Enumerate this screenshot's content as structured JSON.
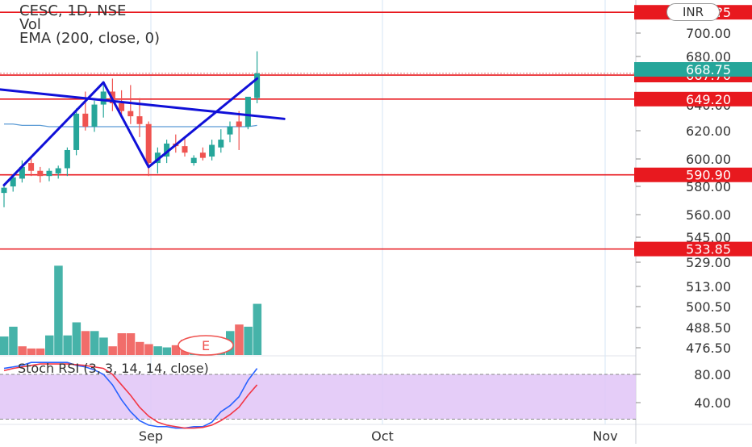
{
  "legend": {
    "symbol": "CESC, 1D, NSE",
    "volume": "Vol",
    "ema": "EMA (200, close, 0)",
    "stoch": "Stoch RSI (3, 3, 14, 14, close)"
  },
  "currency": "INR",
  "event_marker": "E",
  "colors": {
    "up": "#26a69a",
    "down": "#ef5350",
    "pattern_line": "#1010d8",
    "ema_line": "#5b9bd5",
    "level_line": "#e8191f",
    "stoch_k": "#2962ff",
    "stoch_d": "#f23645",
    "stoch_band": "#e1c4f7"
  },
  "chart_data": {
    "type": "candlestick",
    "price_axis_ticks": [
      "700.00",
      "680.00",
      "668.75",
      "640.00",
      "620.00",
      "600.00",
      "580.00",
      "560.00",
      "545.00",
      "529.00",
      "513.00",
      "500.50",
      "488.50",
      "476.50"
    ],
    "stoch_axis_ticks": [
      "80.00",
      "40.00"
    ],
    "x_ticks": [
      "Sep",
      "Oct",
      "Nov"
    ],
    "last_price": "668.75",
    "price_levels": [
      {
        "label": "71?.?5",
        "value": 716
      },
      {
        "label": "667.70",
        "value": 667.7
      },
      {
        "label": "649.20",
        "value": 649.2
      },
      {
        "label": "590.90",
        "value": 590.9
      },
      {
        "label": "533.85",
        "value": 533.85
      }
    ],
    "candles": [
      {
        "o": 577,
        "h": 584,
        "l": 566,
        "c": 581
      },
      {
        "o": 582,
        "h": 590,
        "l": 578,
        "c": 589
      },
      {
        "o": 588,
        "h": 602,
        "l": 585,
        "c": 597
      },
      {
        "o": 600,
        "h": 605,
        "l": 590,
        "c": 594
      },
      {
        "o": 594,
        "h": 597,
        "l": 585,
        "c": 590
      },
      {
        "o": 590,
        "h": 596,
        "l": 586,
        "c": 594
      },
      {
        "o": 592,
        "h": 598,
        "l": 588,
        "c": 596
      },
      {
        "o": 596,
        "h": 612,
        "l": 590,
        "c": 610
      },
      {
        "o": 610,
        "h": 642,
        "l": 606,
        "c": 638
      },
      {
        "o": 638,
        "h": 655,
        "l": 625,
        "c": 628
      },
      {
        "o": 628,
        "h": 648,
        "l": 624,
        "c": 645
      },
      {
        "o": 645,
        "h": 660,
        "l": 635,
        "c": 655
      },
      {
        "o": 655,
        "h": 665,
        "l": 640,
        "c": 646
      },
      {
        "o": 646,
        "h": 656,
        "l": 636,
        "c": 640
      },
      {
        "o": 640,
        "h": 660,
        "l": 630,
        "c": 636
      },
      {
        "o": 636,
        "h": 650,
        "l": 620,
        "c": 630
      },
      {
        "o": 630,
        "h": 632,
        "l": 590,
        "c": 600
      },
      {
        "o": 600,
        "h": 612,
        "l": 592,
        "c": 608
      },
      {
        "o": 605,
        "h": 618,
        "l": 600,
        "c": 615
      },
      {
        "o": 615,
        "h": 622,
        "l": 608,
        "c": 613
      },
      {
        "o": 613,
        "h": 620,
        "l": 605,
        "c": 608
      },
      {
        "o": 600,
        "h": 606,
        "l": 598,
        "c": 604
      },
      {
        "o": 608,
        "h": 612,
        "l": 602,
        "c": 604
      },
      {
        "o": 605,
        "h": 618,
        "l": 602,
        "c": 614
      },
      {
        "o": 612,
        "h": 626,
        "l": 608,
        "c": 618
      },
      {
        "o": 622,
        "h": 632,
        "l": 616,
        "c": 628
      },
      {
        "o": 632,
        "h": 640,
        "l": 610,
        "c": 628
      },
      {
        "o": 628,
        "h": 650,
        "l": 626,
        "c": 651
      },
      {
        "o": 650,
        "h": 686,
        "l": 646,
        "c": 669
      }
    ],
    "volume_level_shown": [
      0.17,
      0.26,
      0.08,
      0.06,
      0.06,
      0.18,
      0.82,
      0.18,
      0.3,
      0.22,
      0.22,
      0.16,
      0.08,
      0.2,
      0.2,
      0.12,
      0.1,
      0.08,
      0.07,
      0.09,
      0.14,
      0.1,
      0.18,
      0.16,
      0.15,
      0.22,
      0.28,
      0.26,
      0.47
    ],
    "volume_up": [
      true,
      true,
      false,
      false,
      false,
      true,
      true,
      true,
      true,
      false,
      true,
      true,
      false,
      false,
      false,
      false,
      false,
      true,
      true,
      false,
      false,
      true,
      false,
      true,
      true,
      true,
      false,
      true,
      true
    ],
    "ema_200": [
      630,
      630,
      629,
      629,
      629,
      628,
      628,
      628,
      628,
      628,
      628,
      628,
      628,
      628,
      628,
      628,
      628,
      628,
      628,
      628,
      628,
      628,
      628,
      628,
      628,
      628,
      628,
      628,
      629
    ],
    "stoch_k": [
      88,
      90,
      92,
      96,
      96,
      96,
      96,
      96,
      92,
      90,
      86,
      80,
      66,
      46,
      30,
      18,
      12,
      10,
      10,
      8,
      8,
      10,
      10,
      16,
      30,
      38,
      50,
      72,
      88
    ],
    "stoch_d": [
      85,
      88,
      90,
      92,
      94,
      94,
      94,
      94,
      93,
      92,
      90,
      88,
      80,
      66,
      52,
      36,
      24,
      16,
      12,
      10,
      8,
      8,
      9,
      12,
      18,
      26,
      36,
      52,
      66
    ],
    "pattern_lines": [
      {
        "from": [
          0,
          583
        ],
        "to": [
          11,
          662
        ]
      },
      {
        "from": [
          11,
          662
        ],
        "to": [
          16,
          597
        ]
      },
      {
        "from": [
          16,
          597
        ],
        "to": [
          28,
          665
        ]
      },
      {
        "from": [
          -1,
          657
        ],
        "to": [
          31,
          634
        ]
      }
    ]
  }
}
